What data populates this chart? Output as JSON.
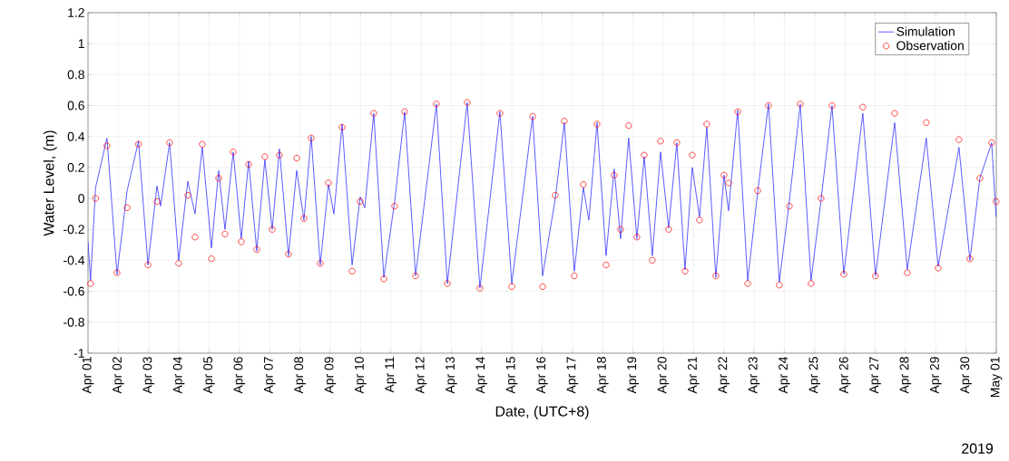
{
  "chart_data": {
    "type": "line",
    "xlabel": "Date, (UTC+8)",
    "ylabel": "Water Level, (m)",
    "annotations": [
      "2019"
    ],
    "xlim": [
      "2019-04-01",
      "2019-05-01"
    ],
    "xticks": [
      {
        "value": "2019-04-01",
        "label": "Apr 01"
      },
      {
        "value": "2019-04-02",
        "label": "Apr 02"
      },
      {
        "value": "2019-04-03",
        "label": "Apr 03"
      },
      {
        "value": "2019-04-04",
        "label": "Apr 04"
      },
      {
        "value": "2019-04-05",
        "label": "Apr 05"
      },
      {
        "value": "2019-04-06",
        "label": "Apr 06"
      },
      {
        "value": "2019-04-07",
        "label": "Apr 07"
      },
      {
        "value": "2019-04-08",
        "label": "Apr 08"
      },
      {
        "value": "2019-04-09",
        "label": "Apr 09"
      },
      {
        "value": "2019-04-10",
        "label": "Apr 10"
      },
      {
        "value": "2019-04-11",
        "label": "Apr 11"
      },
      {
        "value": "2019-04-12",
        "label": "Apr 12"
      },
      {
        "value": "2019-04-13",
        "label": "Apr 13"
      },
      {
        "value": "2019-04-14",
        "label": "Apr 14"
      },
      {
        "value": "2019-04-15",
        "label": "Apr 15"
      },
      {
        "value": "2019-04-16",
        "label": "Apr 16"
      },
      {
        "value": "2019-04-17",
        "label": "Apr 17"
      },
      {
        "value": "2019-04-18",
        "label": "Apr 18"
      },
      {
        "value": "2019-04-19",
        "label": "Apr 19"
      },
      {
        "value": "2019-04-20",
        "label": "Apr 20"
      },
      {
        "value": "2019-04-21",
        "label": "Apr 21"
      },
      {
        "value": "2019-04-22",
        "label": "Apr 22"
      },
      {
        "value": "2019-04-23",
        "label": "Apr 23"
      },
      {
        "value": "2019-04-24",
        "label": "Apr 24"
      },
      {
        "value": "2019-04-25",
        "label": "Apr 25"
      },
      {
        "value": "2019-04-26",
        "label": "Apr 26"
      },
      {
        "value": "2019-04-27",
        "label": "Apr 27"
      },
      {
        "value": "2019-04-28",
        "label": "Apr 28"
      },
      {
        "value": "2019-04-29",
        "label": "Apr 29"
      },
      {
        "value": "2019-04-30",
        "label": "Apr 30"
      },
      {
        "value": "2019-05-01",
        "label": "May 01"
      }
    ],
    "ylim": [
      -1,
      1.2
    ],
    "yticks": [
      -1,
      -0.8,
      -0.6,
      -0.4,
      -0.2,
      0,
      0.2,
      0.4,
      0.6,
      0.8,
      1,
      1.2
    ],
    "grid": true,
    "legend": "top right",
    "series": [
      {
        "name": "Simulation",
        "color": "#3333ff",
        "marker": "none",
        "line_style": "solid",
        "x": [
          "2019-04-01T00:00",
          "2019-04-01T02:00",
          "2019-04-01T06:00",
          "2019-04-01T15:00",
          "2019-04-01T23:00",
          "2019-04-02T07:00",
          "2019-04-02T16:00",
          "2019-04-02T23:30",
          "2019-04-03T06:40",
          "2019-04-03T09:30",
          "2019-04-03T16:40",
          "2019-04-03T23:50",
          "2019-04-04T07:05",
          "2019-04-04T12:50",
          "2019-04-04T18:35",
          "2019-04-05T01:50",
          "2019-04-05T07:35",
          "2019-04-05T12:35",
          "2019-04-05T19:05",
          "2019-04-06T01:30",
          "2019-04-06T07:20",
          "2019-04-06T13:45",
          "2019-04-06T20:10",
          "2019-04-07T02:00",
          "2019-04-07T07:45",
          "2019-04-07T14:55",
          "2019-04-07T21:25",
          "2019-04-08T03:10",
          "2019-04-08T08:55",
          "2019-04-08T16:05",
          "2019-04-08T22:35",
          "2019-04-09T02:55",
          "2019-04-09T09:25",
          "2019-04-09T17:20",
          "2019-04-09T23:45",
          "2019-04-10T03:25",
          "2019-04-10T10:30",
          "2019-04-10T18:30",
          "2019-04-11T03:05",
          "2019-04-11T11:00",
          "2019-04-11T19:40",
          "2019-04-12T12:10",
          "2019-04-12T20:50",
          "2019-04-13T12:35",
          "2019-04-13T22:40",
          "2019-04-14T14:30",
          "2019-04-14T23:55",
          "2019-04-15T16:25",
          "2019-04-16T00:20",
          "2019-04-16T10:25",
          "2019-04-16T17:35",
          "2019-04-17T01:30",
          "2019-04-17T08:40",
          "2019-04-17T13:00",
          "2019-04-17T19:30",
          "2019-04-18T02:40",
          "2019-04-18T09:05",
          "2019-04-18T14:10",
          "2019-04-18T20:35",
          "2019-04-19T03:05",
          "2019-04-19T08:55",
          "2019-04-19T15:20",
          "2019-04-19T21:50",
          "2019-04-20T04:15",
          "2019-04-20T10:45",
          "2019-04-20T17:15",
          "2019-04-20T23:00",
          "2019-04-21T04:45",
          "2019-04-21T10:30",
          "2019-04-21T17:40",
          "2019-04-22T00:10",
          "2019-04-22T03:45",
          "2019-04-22T11:00",
          "2019-04-22T18:55",
          "2019-04-23T02:50",
          "2019-04-23T11:25",
          "2019-04-23T20:00",
          "2019-04-24T03:55",
          "2019-04-24T12:35",
          "2019-04-24T21:10",
          "2019-04-25T05:05",
          "2019-04-25T13:45",
          "2019-04-25T23:05",
          "2019-04-26T14:10",
          "2019-04-27T00:15",
          "2019-04-27T15:25",
          "2019-04-28T01:25",
          "2019-04-28T16:30",
          "2019-04-29T01:55",
          "2019-04-29T18:25",
          "2019-04-30T03:05",
          "2019-04-30T11:00",
          "2019-04-30T20:20",
          "2019-04-30T23:50"
        ],
        "values": [
          -0.28,
          -0.53,
          0.07,
          0.39,
          -0.49,
          0.05,
          0.37,
          -0.43,
          0.08,
          -0.05,
          0.36,
          -0.4,
          0.11,
          -0.1,
          0.33,
          -0.32,
          0.18,
          -0.2,
          0.3,
          -0.26,
          0.24,
          -0.34,
          0.25,
          -0.2,
          0.32,
          -0.37,
          0.18,
          -0.14,
          0.4,
          -0.43,
          0.09,
          -0.1,
          0.48,
          -0.43,
          0.01,
          -0.06,
          0.55,
          -0.51,
          -0.02,
          0.56,
          -0.5,
          0.61,
          -0.55,
          0.62,
          -0.58,
          0.56,
          -0.55,
          0.53,
          -0.5,
          0.0,
          0.49,
          -0.47,
          0.07,
          -0.14,
          0.49,
          -0.37,
          0.19,
          -0.26,
          0.39,
          -0.26,
          0.27,
          -0.37,
          0.3,
          -0.19,
          0.36,
          -0.46,
          0.2,
          -0.12,
          0.46,
          -0.51,
          0.15,
          -0.08,
          0.57,
          -0.53,
          0.04,
          0.61,
          -0.54,
          -0.02,
          0.61,
          -0.53,
          -0.01,
          0.6,
          -0.49,
          0.55,
          -0.5,
          0.49,
          -0.46,
          0.39,
          -0.44,
          0.33,
          -0.4,
          0.13,
          0.36,
          -0.12
        ]
      },
      {
        "name": "Observation",
        "type": "scatter",
        "color": "#ff0000",
        "marker": "circle",
        "x": [
          "2019-04-01T02:00",
          "2019-04-01T06:00",
          "2019-04-01T15:00",
          "2019-04-01T23:00",
          "2019-04-02T07:00",
          "2019-04-02T16:00",
          "2019-04-02T23:30",
          "2019-04-03T06:40",
          "2019-04-03T16:40",
          "2019-04-03T23:50",
          "2019-04-04T07:05",
          "2019-04-04T12:50",
          "2019-04-04T18:35",
          "2019-04-05T01:50",
          "2019-04-05T07:35",
          "2019-04-05T12:35",
          "2019-04-05T19:05",
          "2019-04-06T01:30",
          "2019-04-06T07:20",
          "2019-04-06T13:45",
          "2019-04-06T20:10",
          "2019-04-07T02:00",
          "2019-04-07T07:45",
          "2019-04-07T14:55",
          "2019-04-07T21:25",
          "2019-04-08T03:10",
          "2019-04-08T08:55",
          "2019-04-08T16:05",
          "2019-04-08T22:35",
          "2019-04-09T09:25",
          "2019-04-09T17:20",
          "2019-04-09T23:45",
          "2019-04-10T10:30",
          "2019-04-10T18:30",
          "2019-04-11T03:05",
          "2019-04-11T11:00",
          "2019-04-11T19:40",
          "2019-04-12T12:10",
          "2019-04-12T20:50",
          "2019-04-13T12:35",
          "2019-04-13T22:40",
          "2019-04-14T14:30",
          "2019-04-14T23:55",
          "2019-04-15T16:25",
          "2019-04-16T00:20",
          "2019-04-16T10:25",
          "2019-04-16T17:35",
          "2019-04-17T01:30",
          "2019-04-17T08:40",
          "2019-04-17T19:30",
          "2019-04-18T02:40",
          "2019-04-18T09:05",
          "2019-04-18T14:10",
          "2019-04-18T20:35",
          "2019-04-19T03:05",
          "2019-04-19T08:55",
          "2019-04-19T15:20",
          "2019-04-19T21:50",
          "2019-04-20T04:15",
          "2019-04-20T10:45",
          "2019-04-20T17:15",
          "2019-04-20T23:00",
          "2019-04-21T04:45",
          "2019-04-21T10:30",
          "2019-04-21T17:40",
          "2019-04-22T00:10",
          "2019-04-22T03:45",
          "2019-04-22T11:00",
          "2019-04-22T18:55",
          "2019-04-23T02:50",
          "2019-04-23T11:25",
          "2019-04-23T20:00",
          "2019-04-24T03:55",
          "2019-04-24T12:35",
          "2019-04-24T21:10",
          "2019-04-25T05:05",
          "2019-04-25T13:45",
          "2019-04-25T23:05",
          "2019-04-26T14:10",
          "2019-04-27T00:15",
          "2019-04-27T15:25",
          "2019-04-28T01:25",
          "2019-04-28T16:30",
          "2019-04-29T01:55",
          "2019-04-29T18:25",
          "2019-04-30T03:05",
          "2019-04-30T11:00",
          "2019-04-30T20:20",
          "2019-04-30T23:50"
        ],
        "values": [
          -0.55,
          0.0,
          0.34,
          -0.48,
          -0.06,
          0.35,
          -0.43,
          -0.02,
          0.36,
          -0.42,
          0.02,
          -0.25,
          0.35,
          -0.39,
          0.13,
          -0.23,
          0.3,
          -0.28,
          0.22,
          -0.33,
          0.27,
          -0.2,
          0.28,
          -0.36,
          0.26,
          -0.13,
          0.39,
          -0.42,
          0.1,
          0.46,
          -0.47,
          -0.02,
          0.55,
          -0.52,
          -0.05,
          0.56,
          -0.5,
          0.61,
          -0.55,
          0.62,
          -0.58,
          0.55,
          -0.57,
          0.53,
          -0.57,
          0.02,
          0.5,
          -0.5,
          0.09,
          0.48,
          -0.43,
          0.15,
          -0.2,
          0.47,
          -0.25,
          0.28,
          -0.4,
          0.37,
          -0.2,
          0.36,
          -0.47,
          0.28,
          -0.14,
          0.48,
          -0.5,
          0.15,
          0.1,
          0.56,
          -0.55,
          0.05,
          0.6,
          -0.56,
          -0.05,
          0.61,
          -0.55,
          0.0,
          0.6,
          -0.49,
          0.59,
          -0.5,
          0.55,
          -0.48,
          0.49,
          -0.45,
          0.38,
          -0.39,
          0.13,
          0.36,
          -0.02
        ]
      }
    ]
  }
}
